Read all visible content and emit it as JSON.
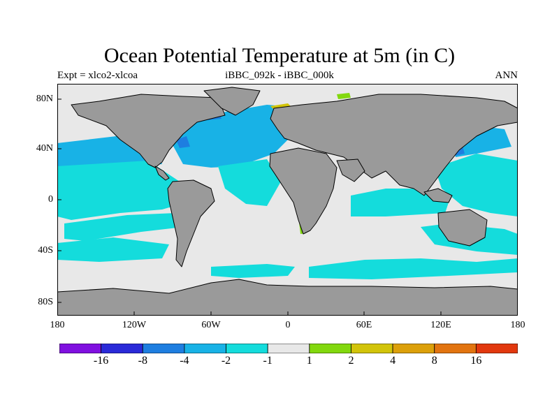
{
  "title": "Ocean Potential Temperature at 5m (in C)",
  "subtitle_left": "Expt = xlco2-xlcoa",
  "subtitle_center": "iBBC_092k - iBBC_000k",
  "subtitle_right": "ANN",
  "axes": {
    "y_ticks": [
      "80N",
      "40N",
      "0",
      "40S",
      "80S"
    ],
    "x_ticks": [
      "180",
      "120W",
      "60W",
      "0",
      "60E",
      "120E",
      "180"
    ]
  },
  "colorbar": {
    "colors": [
      "#8010e0",
      "#2a2ad8",
      "#1e7ee0",
      "#18b2e6",
      "#14dcdc",
      "#e8e8e8",
      "#82d80e",
      "#d2c40a",
      "#dca00a",
      "#e27410",
      "#e2380e"
    ],
    "labels": [
      "-16",
      "-8",
      "-4",
      "-2",
      "-1",
      "1",
      "2",
      "4",
      "8",
      "16"
    ]
  },
  "map_colors": {
    "land": "#9a9a9a",
    "near_zero": "#e8e8e8",
    "cool_1_2": "#14dcdc",
    "cool_2_4": "#18b2e6",
    "cool_4_8": "#1e7ee0",
    "warm_1_2": "#82d80e",
    "warm_2_4": "#d2c40a"
  }
}
